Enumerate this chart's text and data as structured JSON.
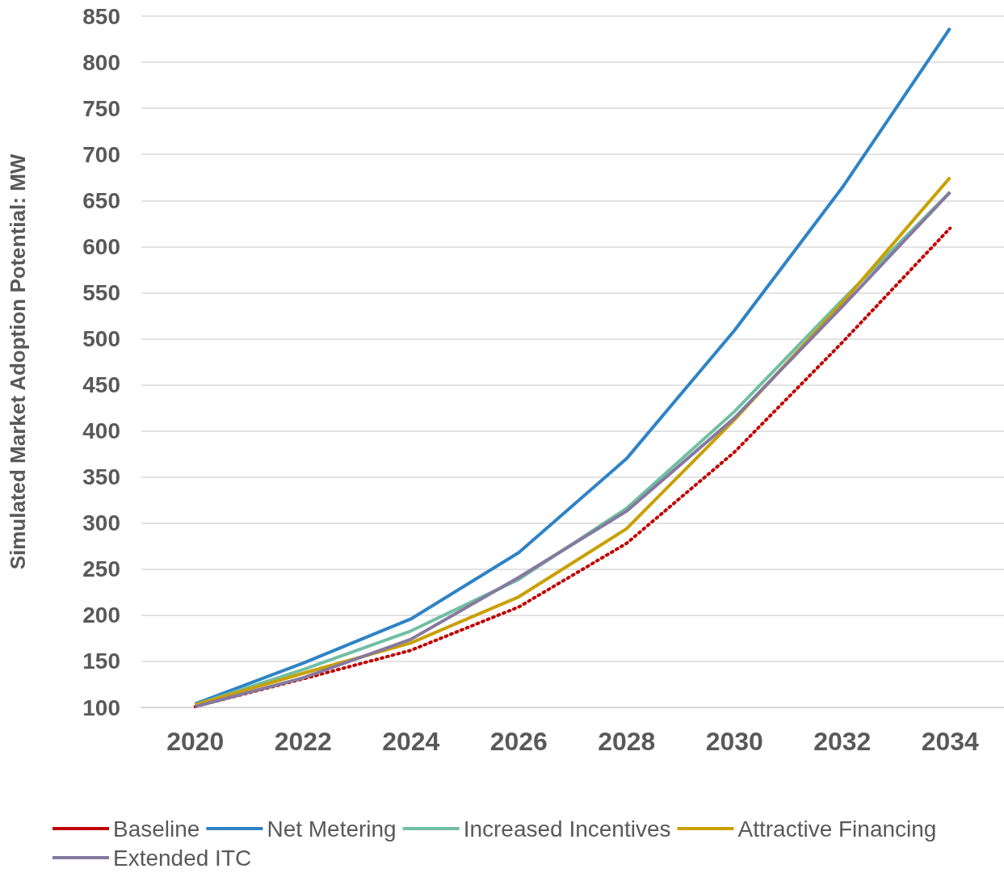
{
  "chart_data": {
    "type": "line",
    "ylabel": "Simulated Market Adoption Potential: MW",
    "categories": [
      "2020",
      "2022",
      "2024",
      "2026",
      "2028",
      "2030",
      "2032",
      "2034"
    ],
    "series": [
      {
        "name": "Baseline",
        "color": "#c00000",
        "line_style": "dotted",
        "values": [
          101,
          131,
          162,
          209,
          278,
          377,
          496,
          620
        ]
      },
      {
        "name": "Net Metering",
        "color": "#2e83c6",
        "line_style": "solid",
        "values": [
          104,
          148,
          196,
          268,
          370,
          509,
          664,
          837
        ]
      },
      {
        "name": "Increased Incentives",
        "color": "#70bfa3",
        "line_style": "solid",
        "values": [
          103,
          141,
          183,
          239,
          316,
          421,
          542,
          659
        ]
      },
      {
        "name": "Attractive Financing",
        "color": "#c9a000",
        "line_style": "solid",
        "values": [
          103,
          137,
          170,
          220,
          294,
          412,
          539,
          675
        ]
      },
      {
        "name": "Extended ITC",
        "color": "#8679a0",
        "line_style": "solid",
        "values": [
          101,
          132,
          174,
          241,
          313,
          414,
          535,
          659
        ]
      }
    ],
    "ylim": [
      100,
      850
    ],
    "yticks": [
      100,
      150,
      200,
      250,
      300,
      350,
      400,
      450,
      500,
      550,
      600,
      650,
      700,
      750,
      800,
      850
    ],
    "grid": "y",
    "legend": "bottom",
    "marker": "none"
  }
}
